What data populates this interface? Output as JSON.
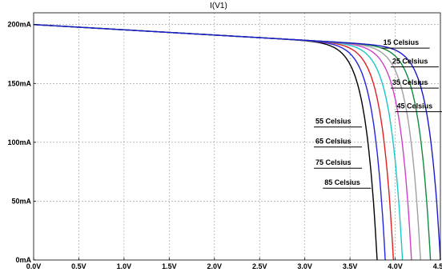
{
  "chart_data": {
    "type": "line",
    "title": "I(V1)",
    "xlabel": "",
    "ylabel": "",
    "xlim": [
      0.0,
      4.5
    ],
    "ylim": [
      0,
      210
    ],
    "grid": true,
    "x_ticks": [
      {
        "value": 0.0,
        "label": "0.0V"
      },
      {
        "value": 0.5,
        "label": "0.5V"
      },
      {
        "value": 1.0,
        "label": "1.0V"
      },
      {
        "value": 1.5,
        "label": "1.5V"
      },
      {
        "value": 2.0,
        "label": "2.0V"
      },
      {
        "value": 2.5,
        "label": "2.5V"
      },
      {
        "value": 3.0,
        "label": "3.0V"
      },
      {
        "value": 3.5,
        "label": "3.5V"
      },
      {
        "value": 4.0,
        "label": "4.0V"
      },
      {
        "value": 4.5,
        "label": "4.5V"
      }
    ],
    "y_ticks": [
      {
        "value": 0,
        "label": "0mA"
      },
      {
        "value": 50,
        "label": "50mA"
      },
      {
        "value": 100,
        "label": "100mA"
      },
      {
        "value": 150,
        "label": "150mA"
      },
      {
        "value": 200,
        "label": "200mA"
      }
    ],
    "series": [
      {
        "name": "15 Celsius",
        "color": "#1a1acc",
        "voc": 4.5,
        "annotation": {
          "x": 3.85,
          "y": 180
        }
      },
      {
        "name": "25 Celsius",
        "color": "#118a3a",
        "voc": 4.39,
        "annotation": {
          "x": 3.95,
          "y": 164
        }
      },
      {
        "name": "35 Celsius",
        "color": "#a0a0a0",
        "voc": 4.28,
        "annotation": {
          "x": 3.95,
          "y": 146
        }
      },
      {
        "name": "45 Celsius",
        "color": "#d040c8",
        "voc": 4.18,
        "annotation": {
          "x": 4.0,
          "y": 126
        }
      },
      {
        "name": "55 Celsius",
        "color": "#19c8c8",
        "voc": 4.08,
        "annotation": {
          "x": 3.1,
          "y": 113
        }
      },
      {
        "name": "65 Celsius",
        "color": "#e02020",
        "voc": 3.98,
        "annotation": {
          "x": 3.1,
          "y": 96
        }
      },
      {
        "name": "75 Celsius",
        "color": "#2424e0",
        "voc": 3.89,
        "annotation": {
          "x": 3.1,
          "y": 78
        }
      },
      {
        "name": "85 Celsius",
        "color": "#000000",
        "voc": 3.8,
        "annotation": {
          "x": 3.2,
          "y": 61
        }
      }
    ],
    "isc": 200,
    "knee_current": 188
  }
}
